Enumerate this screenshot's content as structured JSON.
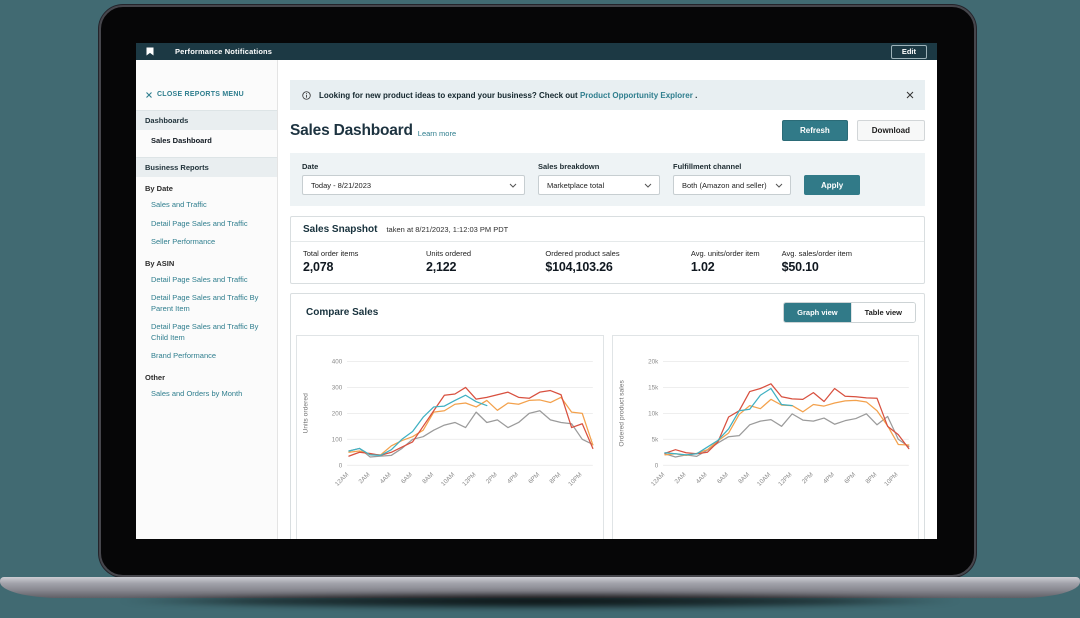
{
  "colors": {
    "accent": "#2f7e8e",
    "button_teal": "#317a88",
    "topbar_bg": "#1c3944",
    "page_background": "#416a72"
  },
  "topbar": {
    "title": "Performance Notifications",
    "edit": "Edit"
  },
  "sidebar": {
    "close": "CLOSE REPORTS MENU",
    "items": [
      {
        "label": "Dashboards"
      },
      {
        "label": "Sales Dashboard"
      },
      {
        "label": "Business Reports"
      },
      {
        "label": "By Date"
      },
      {
        "label": "Sales and Traffic"
      },
      {
        "label": "Detail Page Sales and Traffic"
      },
      {
        "label": "Seller Performance"
      },
      {
        "label": "By ASIN"
      },
      {
        "label": "Detail Page Sales and Traffic"
      },
      {
        "label": "Detail Page Sales and Traffic By Parent Item"
      },
      {
        "label": "Detail Page Sales and Traffic By Child Item"
      },
      {
        "label": "Brand Performance"
      },
      {
        "label": "Other"
      },
      {
        "label": "Sales and Orders by Month"
      }
    ]
  },
  "banner": {
    "text_before": "Looking for new product ideas to expand your business? Check out",
    "link": "Product Opportunity Explorer",
    "text_after": " ."
  },
  "page_header": {
    "title": "Sales Dashboard",
    "learn_more": "Learn more",
    "refresh": "Refresh",
    "download": "Download"
  },
  "filters": {
    "date_label": "Date",
    "date_value": "Today - 8/21/2023",
    "breakdown_label": "Sales breakdown",
    "breakdown_value": "Marketplace total",
    "channel_label": "Fulfillment channel",
    "channel_value": "Both (Amazon and seller)",
    "apply": "Apply"
  },
  "snapshot": {
    "title": "Sales Snapshot",
    "taken_at": "taken at 8/21/2023, 1:12:03 PM PDT",
    "metrics": [
      {
        "label": "Total order items",
        "value": "2,078"
      },
      {
        "label": "Units ordered",
        "value": "2,122"
      },
      {
        "label": "Ordered product sales",
        "value": "$104,103.26"
      },
      {
        "label": "Avg. units/order item",
        "value": "1.02"
      },
      {
        "label": "Avg. sales/order item",
        "value": "$50.10"
      }
    ]
  },
  "compare": {
    "title": "Compare Sales",
    "graph_view": "Graph view",
    "table_view": "Table view"
  },
  "icons": {
    "topbar_left": "bookmark-icon",
    "sidebar_close": "close-icon",
    "banner_left": "info-icon",
    "banner_right": "close-icon",
    "selects": "chevron-down-icon"
  },
  "chart_data": [
    {
      "type": "line",
      "title": "",
      "xlabel": "",
      "ylabel": "Units ordered",
      "ylim": [
        0,
        400
      ],
      "yticks": [
        0,
        100,
        200,
        300,
        400
      ],
      "ytick_labels": [
        "0",
        "100",
        "200",
        "300",
        "400"
      ],
      "categories": [
        "12AM",
        "1AM",
        "2AM",
        "3AM",
        "4AM",
        "5AM",
        "6AM",
        "7AM",
        "8AM",
        "9AM",
        "10AM",
        "11AM",
        "12PM",
        "1PM",
        "2PM",
        "3PM",
        "4PM",
        "5PM",
        "6PM",
        "7PM",
        "8PM",
        "9PM",
        "10PM",
        "11PM"
      ],
      "xtick_every": 2,
      "grid": true,
      "legend_position": "none",
      "series": [
        {
          "name": "gray",
          "color": "#9b9b9b",
          "values": [
            55,
            65,
            32,
            35,
            38,
            65,
            100,
            110,
            135,
            155,
            165,
            145,
            205,
            165,
            175,
            145,
            165,
            200,
            210,
            175,
            165,
            160,
            100,
            80
          ]
        },
        {
          "name": "orange",
          "color": "#f3a14c",
          "values": [
            50,
            55,
            42,
            40,
            75,
            95,
            110,
            135,
            205,
            210,
            235,
            240,
            225,
            250,
            212,
            240,
            235,
            250,
            252,
            242,
            262,
            205,
            200,
            78
          ]
        },
        {
          "name": "red",
          "color": "#d8503f",
          "values": [
            35,
            50,
            45,
            38,
            50,
            70,
            90,
            150,
            210,
            270,
            275,
            300,
            255,
            262,
            272,
            282,
            262,
            258,
            282,
            288,
            272,
            145,
            160,
            65
          ]
        },
        {
          "name": "teal",
          "color": "#3fb0c2",
          "values": [
            55,
            65,
            40,
            38,
            60,
            100,
            130,
            185,
            225,
            228,
            250,
            270,
            245,
            230
          ]
        }
      ]
    },
    {
      "type": "line",
      "title": "",
      "xlabel": "",
      "ylabel": "Ordered product sales",
      "ylim": [
        0,
        20000
      ],
      "yticks": [
        0,
        5000,
        10000,
        15000,
        20000
      ],
      "ytick_labels": [
        "0",
        "5k",
        "10k",
        "15k",
        "20k"
      ],
      "categories": [
        "12AM",
        "1AM",
        "2AM",
        "3AM",
        "4AM",
        "5AM",
        "6AM",
        "7AM",
        "8AM",
        "9AM",
        "10AM",
        "11AM",
        "12PM",
        "1PM",
        "2PM",
        "3PM",
        "4PM",
        "5PM",
        "6PM",
        "7PM",
        "8PM",
        "9PM",
        "10PM",
        "11PM"
      ],
      "xtick_every": 2,
      "grid": true,
      "legend_position": "none",
      "series": [
        {
          "name": "gray",
          "color": "#9b9b9b",
          "values": [
            2200,
            1600,
            2000,
            1700,
            2900,
            4300,
            5500,
            5700,
            7800,
            8500,
            8800,
            7500,
            9900,
            8700,
            8500,
            9100,
            7900,
            8600,
            9000,
            9900,
            7800,
            9400,
            5000,
            3600
          ]
        },
        {
          "name": "orange",
          "color": "#f3a14c",
          "values": [
            2000,
            2200,
            1900,
            2300,
            3000,
            4700,
            6200,
            9800,
            11500,
            10900,
            12700,
            11600,
            11500,
            10300,
            11700,
            11400,
            12000,
            12400,
            12500,
            12200,
            10500,
            7600,
            4000,
            3900
          ]
        },
        {
          "name": "red",
          "color": "#d8503f",
          "values": [
            2300,
            3000,
            2400,
            2200,
            2500,
            4500,
            9300,
            10500,
            14200,
            14800,
            15700,
            13200,
            12800,
            12700,
            14000,
            12300,
            14800,
            13300,
            13200,
            13000,
            12900,
            7500,
            5900,
            3200
          ]
        },
        {
          "name": "teal",
          "color": "#3fb0c2",
          "values": [
            2400,
            2200,
            2000,
            2200,
            3500,
            4800,
            7000,
            10500,
            10800,
            13500,
            14800,
            11700,
            11500
          ]
        }
      ]
    }
  ]
}
